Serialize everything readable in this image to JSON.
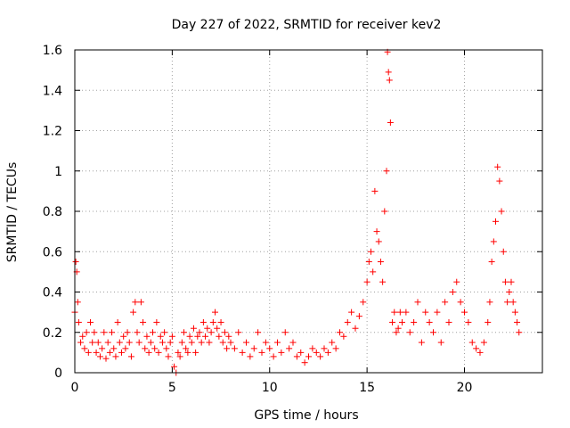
{
  "chart_data": {
    "type": "scatter",
    "title": "Day 227 of 2022, SRMTID for receiver kev2",
    "xlabel": "GPS time / hours",
    "ylabel": "SRMTID / TECUs",
    "xlim": [
      0,
      24
    ],
    "ylim": [
      0,
      1.6
    ],
    "xticks": [
      0,
      5,
      10,
      15,
      20
    ],
    "xtick_labels": [
      "0",
      "5",
      "10",
      "15",
      "20"
    ],
    "yticks": [
      0,
      0.2,
      0.4,
      0.6,
      0.8,
      1,
      1.2,
      1.4,
      1.6
    ],
    "ytick_labels": [
      "0",
      "0.2",
      "0.4",
      "0.6",
      "0.8",
      "1",
      "1.2",
      "1.4",
      "1.6"
    ],
    "grid": true,
    "marker": "+",
    "series": [
      {
        "name": "kev2",
        "color": "#ff0000",
        "x": [
          0.0,
          0.05,
          0.1,
          0.15,
          0.2,
          0.3,
          0.4,
          0.5,
          0.6,
          0.7,
          0.8,
          0.9,
          1.0,
          1.1,
          1.2,
          1.3,
          1.4,
          1.5,
          1.6,
          1.7,
          1.8,
          1.9,
          2.0,
          2.1,
          2.2,
          2.3,
          2.4,
          2.5,
          2.6,
          2.7,
          2.8,
          2.9,
          3.0,
          3.1,
          3.2,
          3.3,
          3.4,
          3.5,
          3.6,
          3.7,
          3.8,
          3.9,
          4.0,
          4.1,
          4.2,
          4.3,
          4.4,
          4.5,
          4.6,
          4.7,
          4.8,
          4.9,
          5.0,
          5.1,
          5.2,
          5.3,
          5.4,
          5.5,
          5.6,
          5.7,
          5.8,
          5.9,
          6.0,
          6.1,
          6.2,
          6.3,
          6.4,
          6.5,
          6.6,
          6.7,
          6.8,
          6.9,
          7.0,
          7.1,
          7.2,
          7.3,
          7.4,
          7.5,
          7.6,
          7.7,
          7.8,
          7.9,
          8.0,
          8.2,
          8.4,
          8.6,
          8.8,
          9.0,
          9.2,
          9.4,
          9.6,
          9.8,
          10.0,
          10.2,
          10.4,
          10.6,
          10.8,
          11.0,
          11.2,
          11.4,
          11.6,
          11.8,
          12.0,
          12.2,
          12.4,
          12.6,
          12.8,
          13.0,
          13.2,
          13.4,
          13.6,
          13.8,
          14.0,
          14.2,
          14.4,
          14.6,
          14.8,
          15.0,
          15.1,
          15.2,
          15.3,
          15.4,
          15.5,
          15.6,
          15.7,
          15.8,
          15.9,
          16.0,
          16.05,
          16.1,
          16.15,
          16.2,
          16.3,
          16.4,
          16.5,
          16.6,
          16.7,
          16.8,
          17.0,
          17.2,
          17.4,
          17.6,
          17.8,
          18.0,
          18.2,
          18.4,
          18.6,
          18.8,
          19.0,
          19.2,
          19.4,
          19.6,
          19.8,
          20.0,
          20.2,
          20.4,
          20.6,
          20.8,
          21.0,
          21.2,
          21.3,
          21.4,
          21.5,
          21.6,
          21.7,
          21.8,
          21.9,
          22.0,
          22.1,
          22.2,
          22.3,
          22.4,
          22.5,
          22.6,
          22.7,
          22.8
        ],
        "y": [
          0.3,
          0.55,
          0.5,
          0.35,
          0.25,
          0.15,
          0.18,
          0.12,
          0.2,
          0.1,
          0.25,
          0.15,
          0.2,
          0.1,
          0.15,
          0.08,
          0.12,
          0.2,
          0.07,
          0.15,
          0.1,
          0.2,
          0.12,
          0.08,
          0.25,
          0.15,
          0.1,
          0.18,
          0.12,
          0.2,
          0.15,
          0.08,
          0.3,
          0.35,
          0.2,
          0.15,
          0.35,
          0.25,
          0.12,
          0.18,
          0.1,
          0.15,
          0.2,
          0.12,
          0.25,
          0.1,
          0.18,
          0.15,
          0.2,
          0.12,
          0.08,
          0.15,
          0.18,
          0.03,
          0.0,
          0.1,
          0.08,
          0.15,
          0.2,
          0.12,
          0.1,
          0.18,
          0.15,
          0.22,
          0.1,
          0.18,
          0.2,
          0.15,
          0.25,
          0.18,
          0.22,
          0.15,
          0.2,
          0.25,
          0.3,
          0.22,
          0.18,
          0.25,
          0.15,
          0.2,
          0.12,
          0.18,
          0.15,
          0.12,
          0.2,
          0.1,
          0.15,
          0.08,
          0.12,
          0.2,
          0.1,
          0.15,
          0.12,
          0.08,
          0.15,
          0.1,
          0.2,
          0.12,
          0.15,
          0.08,
          0.1,
          0.05,
          0.08,
          0.12,
          0.1,
          0.08,
          0.12,
          0.1,
          0.15,
          0.12,
          0.2,
          0.18,
          0.25,
          0.3,
          0.22,
          0.28,
          0.35,
          0.45,
          0.55,
          0.6,
          0.5,
          0.9,
          0.7,
          0.65,
          0.55,
          0.45,
          0.8,
          1.0,
          1.59,
          1.49,
          1.45,
          1.24,
          0.25,
          0.3,
          0.2,
          0.22,
          0.3,
          0.25,
          0.3,
          0.2,
          0.25,
          0.35,
          0.15,
          0.3,
          0.25,
          0.2,
          0.3,
          0.15,
          0.35,
          0.25,
          0.4,
          0.45,
          0.35,
          0.3,
          0.25,
          0.15,
          0.12,
          0.1,
          0.15,
          0.25,
          0.35,
          0.55,
          0.65,
          0.75,
          1.02,
          0.95,
          0.8,
          0.6,
          0.45,
          0.35,
          0.4,
          0.45,
          0.35,
          0.3,
          0.25,
          0.2
        ]
      }
    ]
  }
}
